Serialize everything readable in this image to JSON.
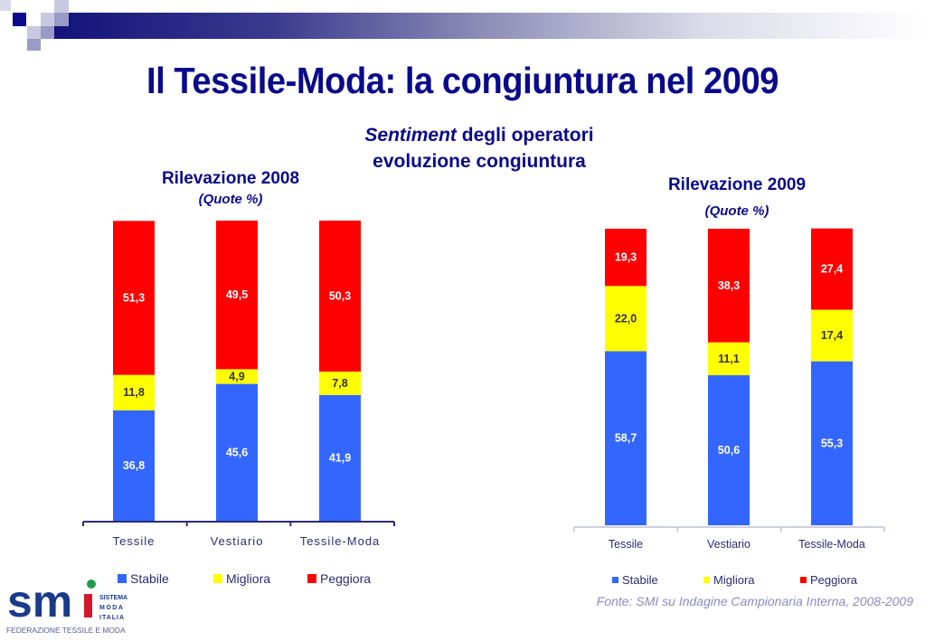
{
  "slide": {
    "title": "Il Tessile-Moda: la congiuntura nel 2009",
    "subtitle_italic": "Sentiment",
    "subtitle_rest": " degli operatori",
    "subtitle_line2": "evoluzione congiuntura",
    "source": "Fonte: SMI su Indagine Campionaria Interna, 2008-2009"
  },
  "logo": {
    "mark": "smi",
    "line1": "SISTEMA",
    "line2": "MODA",
    "line3": "ITALIA",
    "tagline": "FEDERAZIONE TESSILE E MODA"
  },
  "colors": {
    "title": "#0a0a8c",
    "stabile": "#3366ff",
    "migliora": "#ffff00",
    "peggiora": "#ff0000"
  },
  "chart_data": [
    {
      "type": "bar",
      "stacked": true,
      "title": "Rilevazione 2008",
      "subtitle": "(Quote %)",
      "categories": [
        "Tessile",
        "Vestiario",
        "Tessile-Moda"
      ],
      "series": [
        {
          "name": "Stabile",
          "values": [
            36.8,
            45.6,
            41.9
          ],
          "labels": [
            "36,8",
            "45,6",
            "41,9"
          ]
        },
        {
          "name": "Migliora",
          "values": [
            11.8,
            4.9,
            7.8
          ],
          "labels": [
            "11,8",
            "4,9",
            "7,8"
          ]
        },
        {
          "name": "Peggiora",
          "values": [
            51.3,
            49.5,
            50.3
          ],
          "labels": [
            "51,3",
            "49,5",
            "50,3"
          ]
        }
      ],
      "xlabel": "",
      "ylabel": "",
      "ylim": [
        0,
        100
      ],
      "grid": false,
      "legend": "bottom"
    },
    {
      "type": "bar",
      "stacked": true,
      "title": "Rilevazione 2009",
      "subtitle": "(Quote %)",
      "categories": [
        "Tessile",
        "Vestiario",
        "Tessile-Moda"
      ],
      "series": [
        {
          "name": "Stabile",
          "values": [
            58.7,
            50.6,
            55.3
          ],
          "labels": [
            "58,7",
            "50,6",
            "55,3"
          ]
        },
        {
          "name": "Migliora",
          "values": [
            22.0,
            11.1,
            17.4
          ],
          "labels": [
            "22,0",
            "11,1",
            "17,4"
          ]
        },
        {
          "name": "Peggiora",
          "values": [
            19.3,
            38.3,
            27.4
          ],
          "labels": [
            "19,3",
            "38,3",
            "27,4"
          ]
        }
      ],
      "xlabel": "",
      "ylabel": "",
      "ylim": [
        0,
        100
      ],
      "grid": false,
      "legend": "bottom"
    }
  ]
}
